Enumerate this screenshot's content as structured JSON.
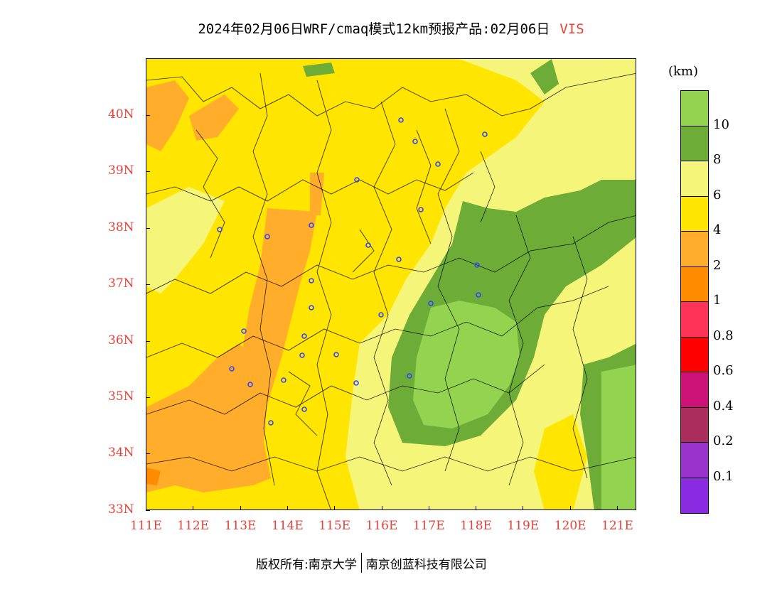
{
  "title": {
    "text": "2024年02月06日WRF/cmaq模式12km预报产品:02月06日",
    "variable": "VIS"
  },
  "map": {
    "x_ticks": [
      "111E",
      "112E",
      "113E",
      "114E",
      "115E",
      "116E",
      "117E",
      "118E",
      "119E",
      "120E",
      "121E"
    ],
    "y_ticks": [
      "40N",
      "39N",
      "38N",
      "37N",
      "36N",
      "35N",
      "34N",
      "33N"
    ],
    "colors": {
      "orange": "#ffad2a",
      "yellow": "#ffe500",
      "light_yellow": "#f5f57a",
      "dark_green": "#6dad37",
      "light_green": "#93d34f",
      "dark_orange": "#ff8c00",
      "axis_label": "#e8413a"
    }
  },
  "colorbar": {
    "unit": "(km)",
    "labels": [
      "10",
      "8",
      "6",
      "4",
      "2",
      "1",
      "0.8",
      "0.6",
      "0.4",
      "0.2",
      "0.1"
    ],
    "colors": [
      "#93d34f",
      "#6dad37",
      "#f5f57a",
      "#ffe500",
      "#ffad2a",
      "#ff8c00",
      "#ff3355",
      "#ff0000",
      "#cc1177",
      "#aa2d5e",
      "#9933cc",
      "#8a2be2"
    ]
  },
  "footer": {
    "left": "版权所有:南京大学",
    "right": "南京创蓝科技有限公司"
  }
}
